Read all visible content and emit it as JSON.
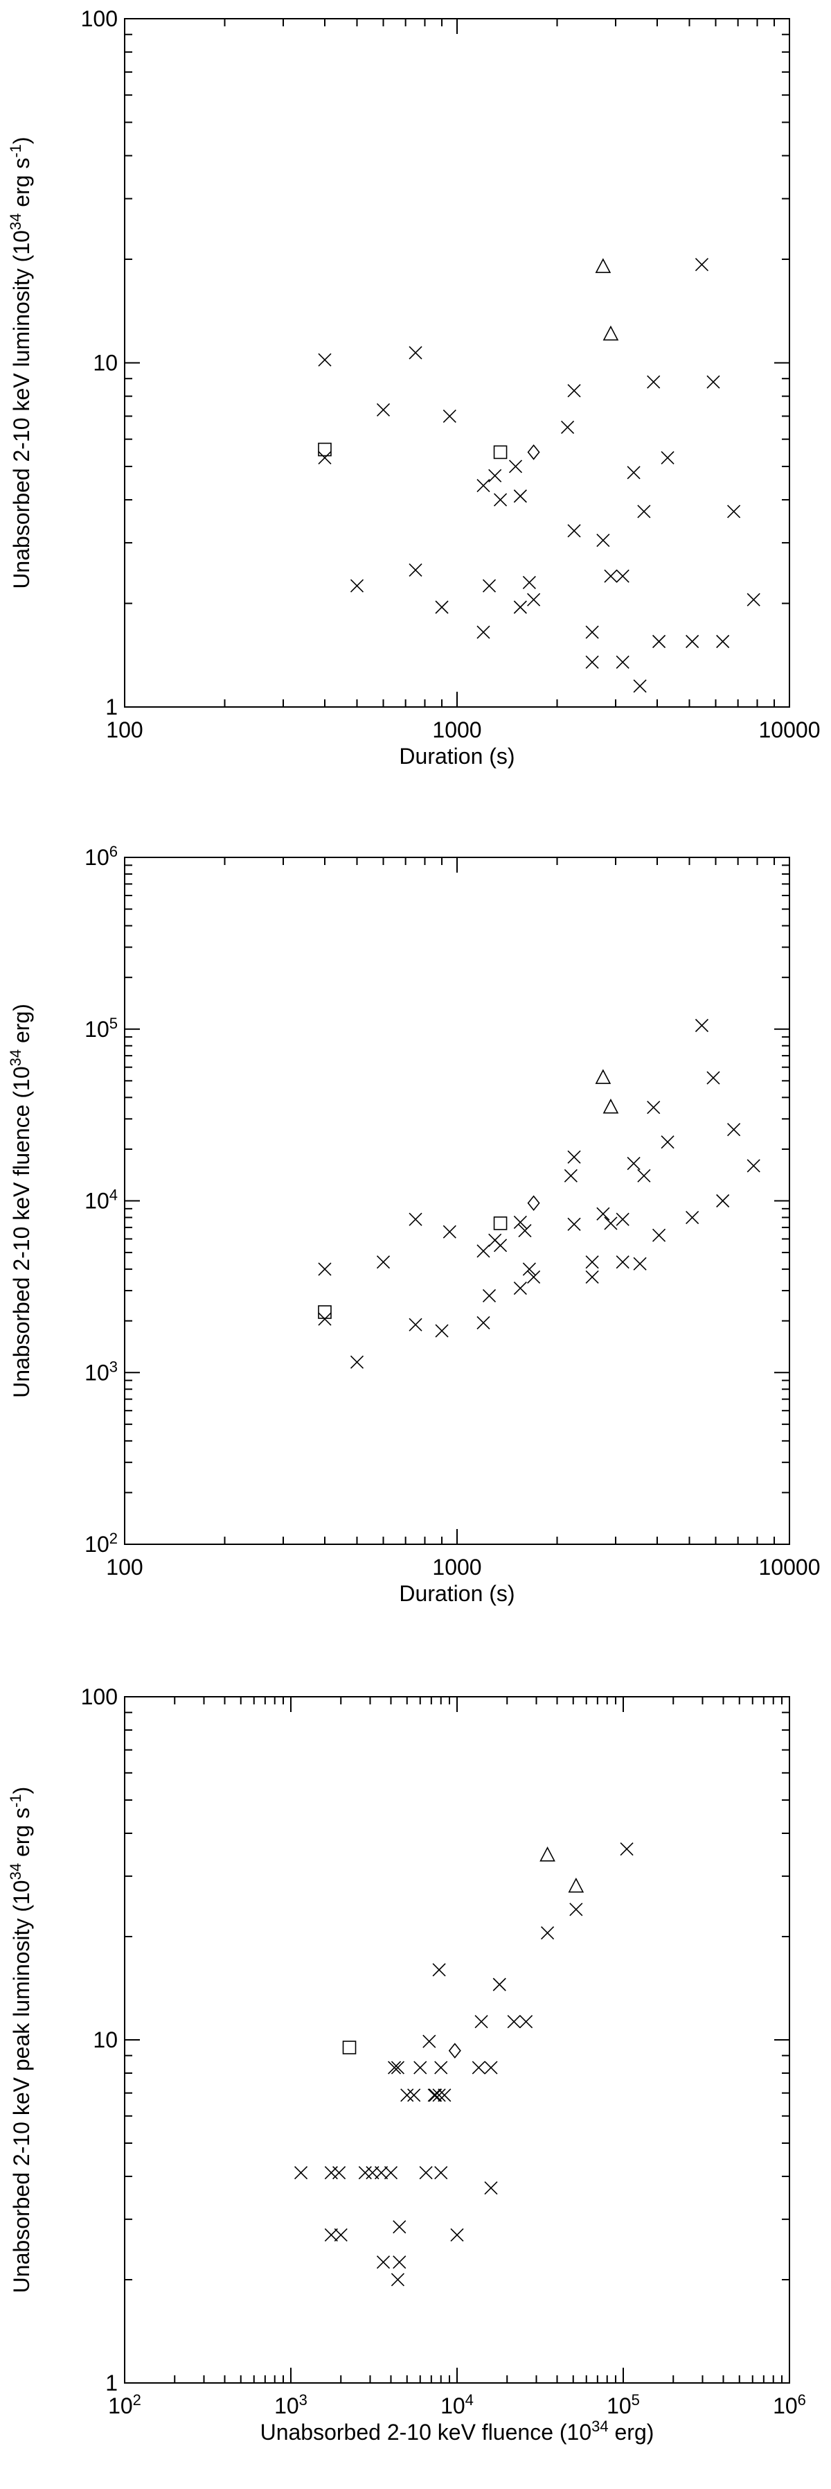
{
  "chart_data": [
    {
      "type": "scatter",
      "title": "",
      "xlabel": "Duration (s)",
      "ylabel": "Unabsorbed 2-10 keV luminosity (10^34 erg s^-1)",
      "xscale": "log",
      "yscale": "log",
      "xlim": [
        100,
        10000
      ],
      "ylim": [
        1,
        100
      ],
      "xticks": [
        {
          "value": 100,
          "label": "100"
        },
        {
          "value": 1000,
          "label": "1000"
        },
        {
          "value": 10000,
          "label": "10000"
        }
      ],
      "yticks": [
        {
          "value": 1,
          "label": "1"
        },
        {
          "value": 10,
          "label": "10"
        },
        {
          "value": 100,
          "label": "100"
        }
      ],
      "grid": false,
      "series": [
        {
          "marker": "cross",
          "points": [
            [
              400,
              10.2
            ],
            [
              400,
              5.3
            ],
            [
              500,
              2.25
            ],
            [
              600,
              7.3
            ],
            [
              750,
              10.7
            ],
            [
              750,
              2.5
            ],
            [
              900,
              1.95
            ],
            [
              950,
              7.0
            ],
            [
              1200,
              4.4
            ],
            [
              1200,
              1.65
            ],
            [
              1250,
              2.25
            ],
            [
              1300,
              4.7
            ],
            [
              1350,
              4.0
            ],
            [
              1500,
              5.0
            ],
            [
              1550,
              4.1
            ],
            [
              1550,
              1.95
            ],
            [
              1650,
              2.3
            ],
            [
              1700,
              2.05
            ],
            [
              2150,
              6.5
            ],
            [
              2250,
              8.3
            ],
            [
              2250,
              3.25
            ],
            [
              2550,
              1.35
            ],
            [
              2550,
              1.65
            ],
            [
              2750,
              3.05
            ],
            [
              2900,
              2.4
            ],
            [
              3150,
              2.4
            ],
            [
              3150,
              1.35
            ],
            [
              3400,
              4.8
            ],
            [
              3550,
              1.15
            ],
            [
              3650,
              3.7
            ],
            [
              3900,
              8.8
            ],
            [
              4050,
              1.55
            ],
            [
              4300,
              5.3
            ],
            [
              5100,
              1.55
            ],
            [
              5450,
              19.3
            ],
            [
              5900,
              8.8
            ],
            [
              6300,
              1.55
            ],
            [
              6800,
              3.7
            ],
            [
              7800,
              2.05
            ]
          ]
        },
        {
          "marker": "square",
          "points": [
            [
              400,
              5.6
            ],
            [
              1350,
              5.5
            ]
          ]
        },
        {
          "marker": "diamond",
          "points": [
            [
              1700,
              5.5
            ]
          ]
        },
        {
          "marker": "triangle",
          "points": [
            [
              2750,
              19.0
            ],
            [
              2900,
              12.1
            ]
          ]
        }
      ]
    },
    {
      "type": "scatter",
      "title": "",
      "xlabel": "Duration (s)",
      "ylabel": "Unabsorbed 2-10 keV fluence (10^34 erg)",
      "xscale": "log",
      "yscale": "log",
      "xlim": [
        100,
        10000
      ],
      "ylim": [
        100,
        1000000
      ],
      "xticks": [
        {
          "value": 100,
          "label": "100"
        },
        {
          "value": 1000,
          "label": "1000"
        },
        {
          "value": 10000,
          "label": "10000"
        }
      ],
      "yticks": [
        {
          "value": 100,
          "label": "10^2"
        },
        {
          "value": 1000,
          "label": "10^3"
        },
        {
          "value": 10000,
          "label": "10^4"
        },
        {
          "value": 100000,
          "label": "10^5"
        },
        {
          "value": 1000000,
          "label": "10^6"
        }
      ],
      "grid": false,
      "series": [
        {
          "marker": "cross",
          "points": [
            [
              400,
              4000
            ],
            [
              400,
              2050
            ],
            [
              500,
              1150
            ],
            [
              600,
              4400
            ],
            [
              750,
              7800
            ],
            [
              750,
              1900
            ],
            [
              900,
              1750
            ],
            [
              950,
              6600
            ],
            [
              1200,
              5100
            ],
            [
              1200,
              1950
            ],
            [
              1250,
              2800
            ],
            [
              1300,
              5900
            ],
            [
              1350,
              5500
            ],
            [
              1550,
              7500
            ],
            [
              1550,
              3100
            ],
            [
              1600,
              6700
            ],
            [
              1650,
              4000
            ],
            [
              1700,
              3600
            ],
            [
              2200,
              14000
            ],
            [
              2250,
              18000
            ],
            [
              2250,
              7300
            ],
            [
              2550,
              3600
            ],
            [
              2550,
              4400
            ],
            [
              2750,
              8400
            ],
            [
              2900,
              7400
            ],
            [
              3150,
              7800
            ],
            [
              3150,
              4400
            ],
            [
              3400,
              16500
            ],
            [
              3550,
              4300
            ],
            [
              3650,
              14000
            ],
            [
              3900,
              35000
            ],
            [
              4050,
              6300
            ],
            [
              4300,
              22000
            ],
            [
              5100,
              8000
            ],
            [
              5450,
              105000
            ],
            [
              5900,
              52000
            ],
            [
              6300,
              10000
            ],
            [
              6800,
              26000
            ],
            [
              7800,
              16000
            ]
          ]
        },
        {
          "marker": "square",
          "points": [
            [
              400,
              2250
            ],
            [
              1350,
              7400
            ]
          ]
        },
        {
          "marker": "diamond",
          "points": [
            [
              1700,
              9700
            ]
          ]
        },
        {
          "marker": "triangle",
          "points": [
            [
              2750,
              52000
            ],
            [
              2900,
              35000
            ]
          ]
        }
      ]
    },
    {
      "type": "scatter",
      "title": "",
      "xlabel": "Unabsorbed 2-10 keV fluence (10^34 erg)",
      "ylabel": "Unabsorbed 2-10 keV peak luminosity (10^34 erg s^-1)",
      "xscale": "log",
      "yscale": "log",
      "xlim": [
        100,
        1000000
      ],
      "ylim": [
        1,
        100
      ],
      "xticks": [
        {
          "value": 100,
          "label": "10^2"
        },
        {
          "value": 1000,
          "label": "10^3"
        },
        {
          "value": 10000,
          "label": "10^4"
        },
        {
          "value": 100000,
          "label": "10^5"
        },
        {
          "value": 1000000,
          "label": "10^6"
        }
      ],
      "yticks": [
        {
          "value": 1,
          "label": "1"
        },
        {
          "value": 10,
          "label": "10"
        },
        {
          "value": 100,
          "label": "100"
        }
      ],
      "grid": false,
      "series": [
        {
          "marker": "cross",
          "points": [
            [
              1150,
              4.1
            ],
            [
              1750,
              4.1
            ],
            [
              1750,
              2.7
            ],
            [
              1950,
              4.1
            ],
            [
              2000,
              2.7
            ],
            [
              2800,
              4.1
            ],
            [
              3100,
              4.1
            ],
            [
              3500,
              4.1
            ],
            [
              3600,
              2.25
            ],
            [
              4000,
              4.1
            ],
            [
              4200,
              8.3
            ],
            [
              4400,
              8.3
            ],
            [
              4400,
              2.0
            ],
            [
              4500,
              2.85
            ],
            [
              4500,
              2.25
            ],
            [
              5000,
              6.9
            ],
            [
              5500,
              6.9
            ],
            [
              6000,
              8.3
            ],
            [
              6500,
              4.1
            ],
            [
              6800,
              9.9
            ],
            [
              7300,
              6.9
            ],
            [
              7400,
              6.9
            ],
            [
              7800,
              6.9
            ],
            [
              7800,
              16.0
            ],
            [
              8000,
              4.1
            ],
            [
              8000,
              8.3
            ],
            [
              8400,
              6.9
            ],
            [
              10000,
              2.7
            ],
            [
              13500,
              8.3
            ],
            [
              14000,
              11.3
            ],
            [
              16000,
              8.3
            ],
            [
              16000,
              3.7
            ],
            [
              18000,
              14.5
            ],
            [
              22000,
              11.3
            ],
            [
              26000,
              11.3
            ],
            [
              35000,
              20.5
            ],
            [
              52000,
              24.0
            ],
            [
              105000,
              36.0
            ]
          ]
        },
        {
          "marker": "square",
          "points": [
            [
              2250,
              9.5
            ]
          ]
        },
        {
          "marker": "diamond",
          "points": [
            [
              9700,
              9.3
            ]
          ]
        },
        {
          "marker": "triangle",
          "points": [
            [
              35000,
              34.5
            ],
            [
              52000,
              28.0
            ]
          ]
        }
      ]
    }
  ]
}
